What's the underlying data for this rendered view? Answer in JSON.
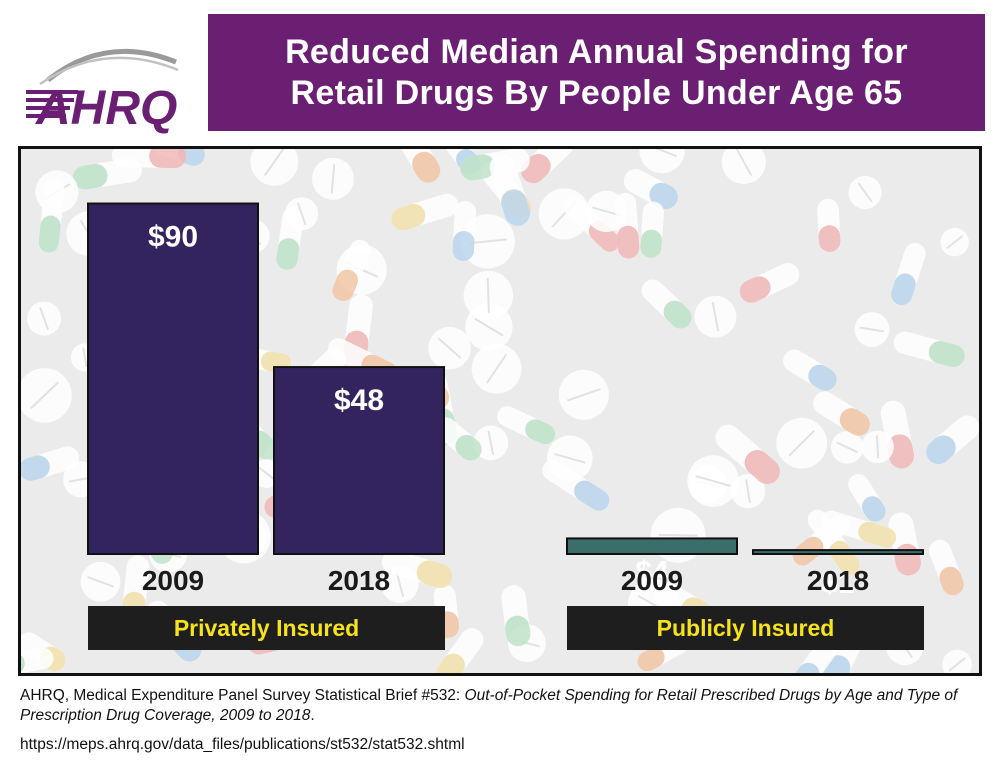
{
  "logo": {
    "text": "AHRQ",
    "color": "#6b1f73"
  },
  "title": {
    "line1": "Reduced Median Annual Spending for",
    "line2": "Retail Drugs By People Under Age 65",
    "background": "#6b1f73"
  },
  "chart_data": {
    "type": "bar",
    "title": "Reduced Median Annual Spending for Retail Drugs By People Under Age 65",
    "groups": [
      {
        "name": "Privately Insured",
        "color": "#33235f",
        "bars": [
          {
            "category": "2009",
            "value": 90,
            "label": "$90"
          },
          {
            "category": "2018",
            "value": 48,
            "label": "$48"
          }
        ]
      },
      {
        "name": "Publicly Insured",
        "color": "#3b6d6b",
        "bars": [
          {
            "category": "2009",
            "value": 4,
            "label": "$4"
          },
          {
            "category": "2018",
            "value": 1,
            "label": "$1"
          }
        ]
      }
    ],
    "ylim": [
      0,
      104
    ],
    "grid": false,
    "legend": "none"
  },
  "footer": {
    "prefix": "AHRQ, Medical Expenditure Panel Survey Statistical Brief #532: ",
    "italic": "Out-of-Pocket Spending for Retail Prescribed Drugs by Age and Type of Prescription Drug Coverage, 2009 to 2018",
    "suffix": ".",
    "url": "https://meps.ahrq.gov/data_files/publications/st532/stat532.shtml"
  }
}
